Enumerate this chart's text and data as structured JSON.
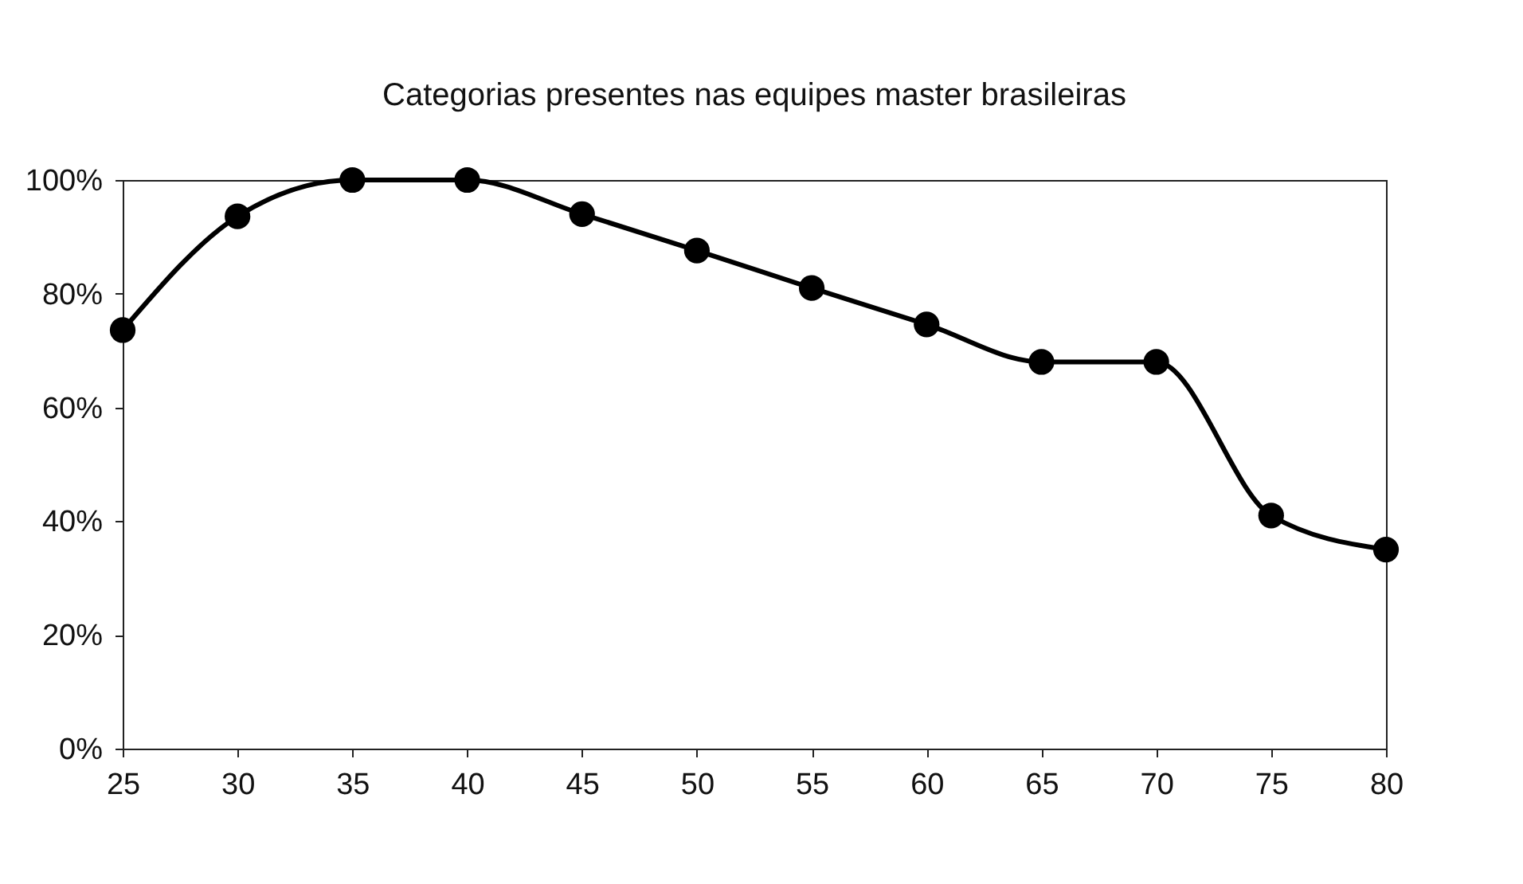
{
  "chart_data": {
    "type": "line",
    "title": "Categorias presentes nas equipes master brasileiras",
    "x": [
      25,
      30,
      35,
      40,
      45,
      50,
      55,
      60,
      65,
      70,
      75,
      80
    ],
    "series": [
      {
        "color": "#000000",
        "values": [
          73.6,
          93.6,
          100,
          100,
          94,
          87.6,
          81,
          74.6,
          68,
          68,
          41,
          35
        ]
      }
    ],
    "xlim": [
      25,
      80
    ],
    "xticks": [
      25,
      30,
      35,
      40,
      45,
      50,
      55,
      60,
      65,
      70,
      75,
      80
    ],
    "ylim": [
      0,
      100
    ],
    "yticks": [
      {
        "value": 0,
        "label": "0%"
      },
      {
        "value": 20,
        "label": "20%"
      },
      {
        "value": 40,
        "label": "40%"
      },
      {
        "value": 60,
        "label": "60%"
      },
      {
        "value": 80,
        "label": "80%"
      },
      {
        "value": 100,
        "label": "100%"
      }
    ],
    "marker": "circle",
    "line_style": "solid",
    "grid": false
  }
}
